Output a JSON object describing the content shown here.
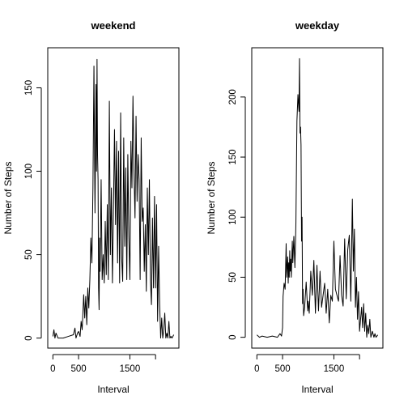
{
  "chart_data": [
    {
      "type": "line",
      "title": "weekend",
      "xlabel": "Interval",
      "ylabel": "Number of Steps",
      "xlim": [
        -100,
        2455
      ],
      "ylim": [
        -6,
        174
      ],
      "x_ticks": [
        0,
        500,
        1500,
        2000
      ],
      "x_tick_labels": [
        "0",
        "500",
        "1500",
        ""
      ],
      "y_ticks": [
        0,
        50,
        100,
        150
      ],
      "y_tick_labels": [
        "0",
        "50",
        "100",
        "150"
      ],
      "grid": false,
      "legend": "none",
      "line_color": "#000000",
      "x": [
        0,
        20,
        40,
        60,
        100,
        200,
        300,
        400,
        430,
        450,
        480,
        500,
        530,
        550,
        570,
        600,
        620,
        640,
        660,
        680,
        700,
        720,
        740,
        760,
        780,
        800,
        820,
        840,
        850,
        860,
        870,
        880,
        890,
        900,
        910,
        920,
        940,
        960,
        980,
        1000,
        1020,
        1040,
        1060,
        1080,
        1100,
        1120,
        1140,
        1160,
        1180,
        1200,
        1220,
        1240,
        1260,
        1280,
        1300,
        1320,
        1340,
        1360,
        1380,
        1400,
        1420,
        1440,
        1460,
        1480,
        1500,
        1520,
        1540,
        1560,
        1580,
        1600,
        1620,
        1640,
        1660,
        1680,
        1700,
        1720,
        1740,
        1760,
        1780,
        1800,
        1820,
        1840,
        1860,
        1880,
        1900,
        1920,
        1940,
        1960,
        1980,
        2000,
        2020,
        2040,
        2060,
        2080,
        2100,
        2120,
        2140,
        2160,
        2180,
        2200,
        2220,
        2240,
        2260,
        2280,
        2300,
        2320,
        2355
      ],
      "y": [
        1,
        5,
        0,
        3,
        0,
        0,
        1,
        2,
        6,
        0,
        3,
        4,
        1,
        10,
        5,
        26,
        12,
        25,
        8,
        30,
        18,
        35,
        60,
        45,
        90,
        163,
        75,
        152,
        100,
        167,
        110,
        95,
        30,
        17,
        60,
        40,
        95,
        35,
        50,
        33,
        70,
        38,
        80,
        35,
        142,
        50,
        90,
        33,
        78,
        125,
        68,
        118,
        45,
        112,
        33,
        135,
        48,
        34,
        120,
        55,
        102,
        35,
        110,
        60,
        35,
        118,
        90,
        145,
        100,
        72,
        133,
        82,
        110,
        95,
        35,
        120,
        70,
        78,
        40,
        68,
        28,
        90,
        50,
        95,
        35,
        20,
        72,
        30,
        85,
        30,
        80,
        10,
        55,
        20,
        0,
        12,
        0,
        5,
        15,
        0,
        3,
        0,
        10,
        0,
        1,
        0,
        2
      ]
    },
    {
      "type": "line",
      "title": "weekday",
      "xlabel": "Interval",
      "ylabel": "Number of Steps",
      "xlim": [
        -100,
        2455
      ],
      "ylim": [
        -9,
        241
      ],
      "x_ticks": [
        0,
        500,
        1500,
        2000
      ],
      "x_tick_labels": [
        "0",
        "500",
        "1500",
        ""
      ],
      "y_ticks": [
        0,
        50,
        100,
        150,
        200
      ],
      "y_tick_labels": [
        "0",
        "50",
        "100",
        "150",
        "200"
      ],
      "grid": false,
      "legend": "none",
      "line_color": "#000000",
      "x": [
        0,
        50,
        100,
        200,
        300,
        400,
        450,
        480,
        500,
        510,
        530,
        550,
        570,
        580,
        600,
        610,
        620,
        630,
        640,
        650,
        660,
        670,
        690,
        700,
        720,
        740,
        760,
        780,
        800,
        820,
        830,
        840,
        850,
        860,
        870,
        880,
        890,
        900,
        910,
        930,
        960,
        990,
        1000,
        1020,
        1050,
        1080,
        1110,
        1140,
        1170,
        1200,
        1230,
        1260,
        1290,
        1320,
        1350,
        1380,
        1410,
        1440,
        1470,
        1500,
        1530,
        1560,
        1590,
        1620,
        1650,
        1680,
        1710,
        1740,
        1770,
        1800,
        1830,
        1860,
        1880,
        1900,
        1920,
        1940,
        1960,
        1980,
        2000,
        2020,
        2040,
        2060,
        2080,
        2100,
        2120,
        2140,
        2160,
        2180,
        2200,
        2220,
        2250,
        2280,
        2300,
        2320,
        2355
      ],
      "y": [
        2,
        0,
        1,
        0,
        1,
        0,
        3,
        1,
        8,
        34,
        45,
        40,
        78,
        50,
        67,
        45,
        62,
        50,
        72,
        55,
        65,
        50,
        80,
        62,
        84,
        58,
        95,
        180,
        202,
        188,
        232,
        170,
        175,
        160,
        80,
        100,
        28,
        40,
        18,
        25,
        46,
        22,
        30,
        20,
        55,
        35,
        64,
        20,
        60,
        22,
        55,
        25,
        35,
        45,
        20,
        40,
        12,
        35,
        30,
        80,
        40,
        35,
        30,
        68,
        35,
        26,
        82,
        32,
        73,
        85,
        30,
        115,
        55,
        90,
        25,
        50,
        15,
        38,
        5,
        15,
        25,
        8,
        28,
        5,
        20,
        0,
        10,
        3,
        15,
        0,
        5,
        0,
        3,
        0,
        2
      ]
    }
  ]
}
